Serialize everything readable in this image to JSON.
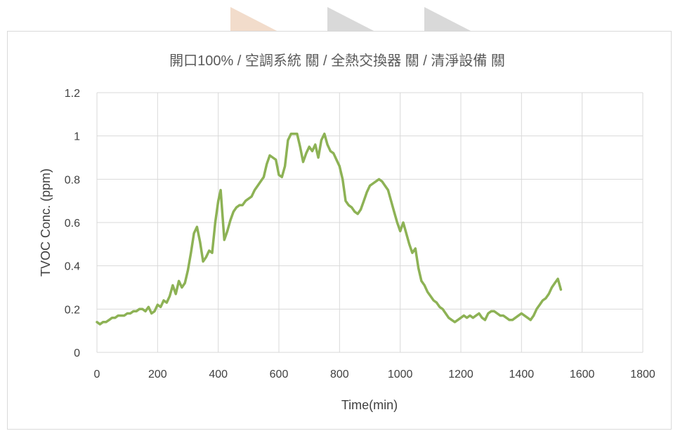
{
  "chart_data": {
    "type": "line",
    "title": "開口100% / 空調系統 關 / 全熱交換器 關 / 清淨設備 關",
    "xlabel": "Time(min)",
    "ylabel": "TVOC Conc. (ppm)",
    "xlim": [
      0,
      1800
    ],
    "ylim": [
      0,
      1.2
    ],
    "xticks": [
      "0",
      "200",
      "400",
      "600",
      "800",
      "1000",
      "1200",
      "1400",
      "1600",
      "1800"
    ],
    "yticks": [
      "0",
      "0.2",
      "0.4",
      "0.6",
      "0.8",
      "1",
      "1.2"
    ],
    "grid": true,
    "legend": "none",
    "line_color": "#8db255",
    "grid_color": "#d9d9d9",
    "series": [
      {
        "x": [
          0,
          10,
          20,
          30,
          40,
          50,
          60,
          70,
          80,
          90,
          100,
          110,
          120,
          130,
          140,
          150,
          160,
          170,
          180,
          190,
          200,
          210,
          220,
          230,
          240,
          250,
          260,
          270,
          280,
          290,
          300,
          310,
          320,
          330,
          340,
          350,
          360,
          370,
          380,
          390,
          400,
          408,
          420,
          430,
          440,
          450,
          460,
          470,
          480,
          490,
          500,
          510,
          520,
          530,
          540,
          550,
          560,
          570,
          580,
          590,
          600,
          610,
          620,
          630,
          640,
          650,
          660,
          670,
          680,
          690,
          700,
          710,
          720,
          730,
          740,
          750,
          760,
          770,
          780,
          790,
          800,
          810,
          820,
          830,
          840,
          850,
          860,
          870,
          880,
          890,
          900,
          910,
          920,
          930,
          940,
          950,
          960,
          970,
          980,
          990,
          1000,
          1010,
          1020,
          1030,
          1040,
          1050,
          1060,
          1070,
          1080,
          1090,
          1100,
          1110,
          1120,
          1130,
          1140,
          1150,
          1160,
          1170,
          1180,
          1190,
          1200,
          1210,
          1220,
          1230,
          1240,
          1250,
          1260,
          1270,
          1280,
          1290,
          1300,
          1310,
          1320,
          1330,
          1340,
          1350,
          1360,
          1370,
          1380,
          1390,
          1400,
          1410,
          1420,
          1430,
          1440,
          1450,
          1460,
          1470,
          1480,
          1490,
          1500,
          1510,
          1520,
          1530
        ],
        "values": [
          0.14,
          0.13,
          0.14,
          0.14,
          0.15,
          0.16,
          0.16,
          0.17,
          0.17,
          0.17,
          0.18,
          0.18,
          0.19,
          0.19,
          0.2,
          0.2,
          0.19,
          0.21,
          0.18,
          0.19,
          0.22,
          0.21,
          0.24,
          0.23,
          0.26,
          0.31,
          0.27,
          0.33,
          0.3,
          0.32,
          0.38,
          0.46,
          0.55,
          0.58,
          0.51,
          0.42,
          0.44,
          0.47,
          0.46,
          0.6,
          0.7,
          0.75,
          0.52,
          0.56,
          0.61,
          0.65,
          0.67,
          0.68,
          0.68,
          0.7,
          0.71,
          0.72,
          0.75,
          0.77,
          0.79,
          0.81,
          0.87,
          0.91,
          0.9,
          0.89,
          0.82,
          0.81,
          0.86,
          0.98,
          1.01,
          1.01,
          1.01,
          0.95,
          0.88,
          0.92,
          0.95,
          0.93,
          0.96,
          0.9,
          0.98,
          1.01,
          0.96,
          0.93,
          0.92,
          0.89,
          0.86,
          0.8,
          0.7,
          0.68,
          0.67,
          0.65,
          0.64,
          0.66,
          0.7,
          0.74,
          0.77,
          0.78,
          0.79,
          0.8,
          0.79,
          0.77,
          0.75,
          0.7,
          0.65,
          0.6,
          0.56,
          0.6,
          0.55,
          0.5,
          0.46,
          0.48,
          0.39,
          0.33,
          0.31,
          0.28,
          0.26,
          0.24,
          0.23,
          0.21,
          0.2,
          0.18,
          0.16,
          0.15,
          0.14,
          0.15,
          0.16,
          0.17,
          0.16,
          0.17,
          0.16,
          0.17,
          0.18,
          0.16,
          0.15,
          0.18,
          0.19,
          0.19,
          0.18,
          0.17,
          0.17,
          0.16,
          0.15,
          0.15,
          0.16,
          0.17,
          0.18,
          0.17,
          0.16,
          0.15,
          0.17,
          0.2,
          0.22,
          0.24,
          0.25,
          0.27,
          0.3,
          0.32,
          0.34,
          0.29
        ]
      }
    ]
  },
  "decor": {
    "tab_colors": [
      "#f2dccb",
      "#d9d9d9",
      "#d9d9d9"
    ]
  }
}
